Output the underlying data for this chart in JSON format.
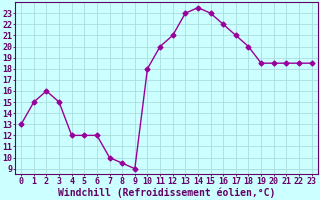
{
  "x": [
    0,
    1,
    2,
    3,
    4,
    5,
    6,
    7,
    8,
    9,
    10,
    11,
    12,
    13,
    14,
    15,
    16,
    17,
    18,
    19,
    20,
    21,
    22,
    23
  ],
  "y": [
    13,
    15,
    16,
    15,
    12,
    12,
    12,
    10,
    9.5,
    9,
    18,
    20,
    21,
    23,
    23.5,
    23,
    22,
    21,
    20,
    18.5,
    18.5,
    18.5,
    18.5,
    18.5
  ],
  "line_color": "#990099",
  "marker": "D",
  "marker_size": 2.5,
  "bg_color": "#ccffff",
  "grid_color": "#aadddd",
  "xlabel": "Windchill (Refroidissement éolien,°C)",
  "xlabel_fontsize": 7,
  "ylabel_ticks": [
    9,
    10,
    11,
    12,
    13,
    14,
    15,
    16,
    17,
    18,
    19,
    20,
    21,
    22,
    23
  ],
  "xlim": [
    -0.5,
    23.5
  ],
  "ylim": [
    8.5,
    24.0
  ],
  "tick_fontsize": 6,
  "label_color": "#660066",
  "border_color": "#660066"
}
